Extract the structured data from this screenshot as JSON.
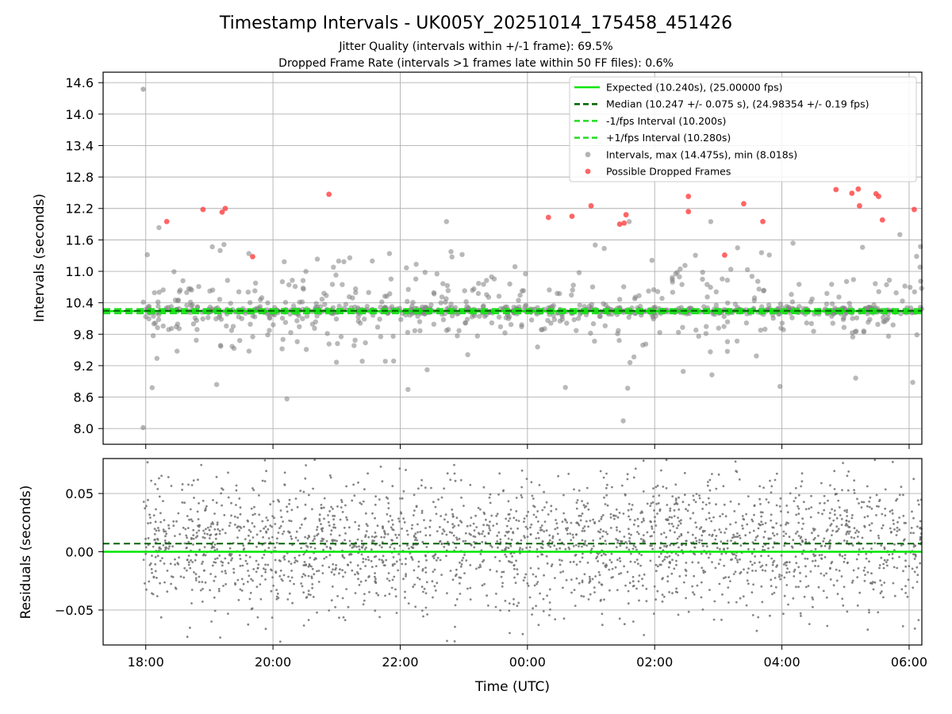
{
  "title": "Timestamp Intervals - UK005Y_20251014_175458_451426",
  "subtitle_1": "Jitter Quality (intervals within +/-1 frame): 69.5%",
  "subtitle_2": "Dropped Frame Rate (intervals >1 frames late within 50 FF files): 0.6%",
  "xlabel": "Time (UTC)",
  "colors": {
    "expected": "#00e600",
    "median": "#006400",
    "interval_lines": "#22dd22",
    "points": "#808080",
    "dropped": "#ff4040",
    "grid": "#b0b0b0"
  },
  "chart_data": [
    {
      "type": "scatter",
      "panel": "top",
      "ylabel": "Intervals (seconds)",
      "x_ticks": [
        "18:00",
        "20:00",
        "22:00",
        "00:00",
        "02:00",
        "04:00",
        "06:00"
      ],
      "x_tick_hours": [
        18,
        20,
        22,
        24,
        26,
        28,
        30
      ],
      "xlim_hours": [
        17.33,
        30.2
      ],
      "ylim": [
        7.7,
        14.8
      ],
      "y_ticks": [
        "8.0",
        "8.6",
        "9.2",
        "9.8",
        "10.4",
        "11.0",
        "11.6",
        "12.2",
        "12.8",
        "13.4",
        "14.0",
        "14.6"
      ],
      "y_tick_values": [
        8.0,
        8.6,
        9.2,
        9.8,
        10.4,
        11.0,
        11.6,
        12.2,
        12.8,
        13.4,
        14.0,
        14.6
      ],
      "grid": true,
      "legend_position": "top-right",
      "legend": [
        {
          "label": "Expected (10.240s), (25.00000 fps)",
          "style": "solid",
          "color": "#00e600"
        },
        {
          "label": "Median (10.247 +/- 0.075 s), (24.98354 +/- 0.19 fps)",
          "style": "dashed",
          "color": "#006400"
        },
        {
          "label": "-1/fps Interval (10.200s)",
          "style": "dashed",
          "color": "#22dd22"
        },
        {
          "label": "+1/fps Interval (10.280s)",
          "style": "dashed",
          "color": "#22dd22"
        },
        {
          "label": "Intervals, max (14.475s), min (8.018s)",
          "style": "marker",
          "color": "#a0a0a0"
        },
        {
          "label": "Possible Dropped Frames",
          "style": "marker",
          "color": "#ff4040"
        }
      ],
      "reference_lines": {
        "expected": 10.24,
        "median": 10.247,
        "minus_one": 10.2,
        "plus_one": 10.28
      },
      "intervals_summary": {
        "max": 14.475,
        "min": 8.018,
        "start_hour": 17.96,
        "end_hour": 30.2
      },
      "dropped_frames": [
        {
          "x": 18.33,
          "y": 11.95
        },
        {
          "x": 18.9,
          "y": 12.18
        },
        {
          "x": 19.2,
          "y": 12.13
        },
        {
          "x": 19.25,
          "y": 12.2
        },
        {
          "x": 19.68,
          "y": 11.28
        },
        {
          "x": 20.88,
          "y": 12.47
        },
        {
          "x": 24.33,
          "y": 12.03
        },
        {
          "x": 24.7,
          "y": 12.05
        },
        {
          "x": 25.0,
          "y": 12.25
        },
        {
          "x": 25.45,
          "y": 11.9
        },
        {
          "x": 25.52,
          "y": 11.92
        },
        {
          "x": 25.55,
          "y": 12.08
        },
        {
          "x": 26.53,
          "y": 12.43
        },
        {
          "x": 26.53,
          "y": 12.14
        },
        {
          "x": 27.1,
          "y": 11.31
        },
        {
          "x": 27.4,
          "y": 12.29
        },
        {
          "x": 27.7,
          "y": 11.95
        },
        {
          "x": 28.85,
          "y": 12.56
        },
        {
          "x": 29.1,
          "y": 12.49
        },
        {
          "x": 29.2,
          "y": 12.57
        },
        {
          "x": 29.22,
          "y": 12.25
        },
        {
          "x": 29.48,
          "y": 12.48
        },
        {
          "x": 29.52,
          "y": 12.43
        },
        {
          "x": 29.58,
          "y": 11.98
        },
        {
          "x": 30.08,
          "y": 12.18
        }
      ]
    },
    {
      "type": "scatter",
      "panel": "bottom",
      "ylabel": "Residuals (seconds)",
      "xlim_hours": [
        17.33,
        30.2
      ],
      "ylim": [
        -0.08,
        0.08
      ],
      "y_ticks": [
        "−0.05",
        "0.00",
        "0.05"
      ],
      "y_tick_values": [
        -0.05,
        0.0,
        0.05
      ],
      "grid": true,
      "reference_lines": {
        "zero": 0.0,
        "median_offset": 0.007
      },
      "residual_spread_sd": 0.03
    }
  ]
}
